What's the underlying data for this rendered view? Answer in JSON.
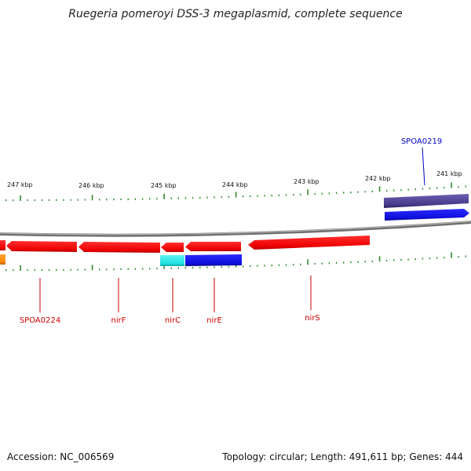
{
  "title": "Ruegeria pomeroyi DSS-3 megaplasmid, complete sequence",
  "footer": {
    "accession": "Accession: NC_006569",
    "summary": "Topology: circular; Length: 491,611 bp; Genes: 444"
  },
  "colors": {
    "backbone": "#8a8a8a",
    "tick": "#2e8b2e",
    "label_red": "#cc0000",
    "label_blue": "#0000cc",
    "gene_red": "#ff1a1a",
    "gene_blue": "#1010ee",
    "gene_cyan": "#22e5e5",
    "gene_orange": "#ff8c00",
    "gene_purple": "#4a3f8c"
  },
  "scale_labels": [
    {
      "id": "247",
      "text": "247 kbp"
    },
    {
      "id": "246",
      "text": "246 kbp"
    },
    {
      "id": "245",
      "text": "245 kbp"
    },
    {
      "id": "244",
      "text": "244 kbp"
    },
    {
      "id": "243",
      "text": "243 kbp"
    },
    {
      "id": "242",
      "text": "242 kbp"
    },
    {
      "id": "241",
      "text": "241 kbp"
    }
  ],
  "gene_labels": [
    {
      "id": "spoa0224",
      "text": "SPOA0224"
    },
    {
      "id": "nirf",
      "text": "nirF"
    },
    {
      "id": "nirc",
      "text": "nirC"
    },
    {
      "id": "nire",
      "text": "nirE"
    },
    {
      "id": "nirs",
      "text": "nirS"
    },
    {
      "id": "spoa0219",
      "text": "SPOA0219"
    }
  ]
}
